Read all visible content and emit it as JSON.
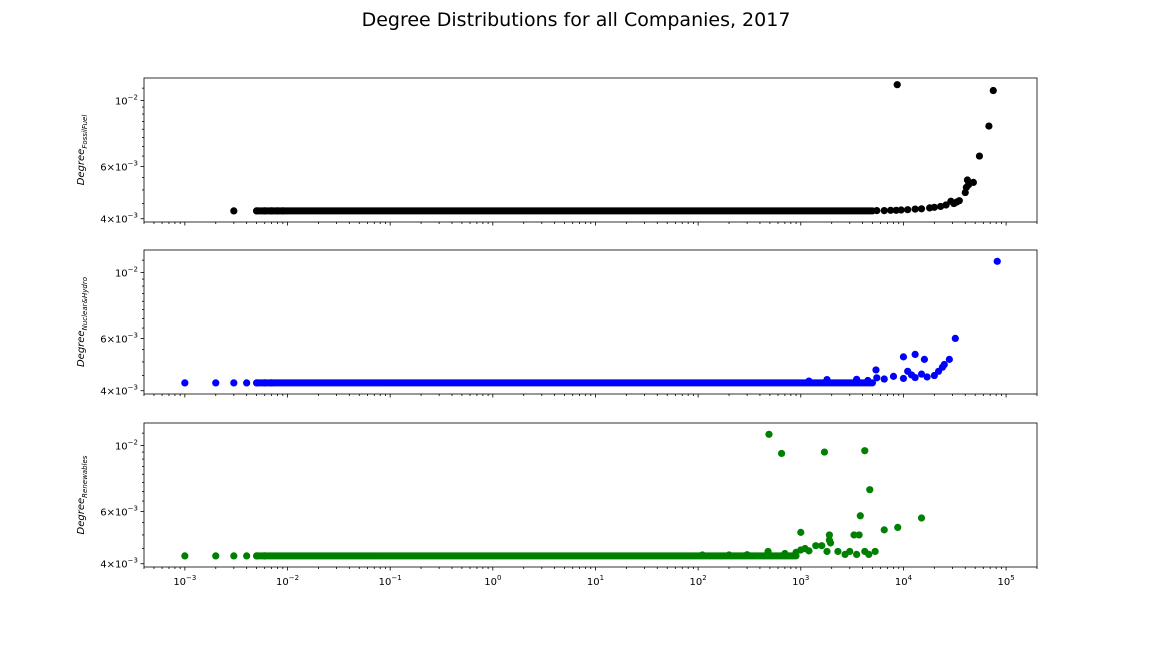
{
  "figure": {
    "title": "Degree Distributions for all Companies, 2017"
  },
  "chart_data": [
    {
      "type": "scatter",
      "color": "#000000",
      "xscale": "log",
      "yscale": "log",
      "xlim": [
        0.0004,
        200000
      ],
      "ylim": [
        0.0039,
        0.0119
      ],
      "ylabel_base": "Degree",
      "ylabel_sub": "FossilFuel",
      "xticks_shown": false,
      "yticks": [
        {
          "value": 0.01,
          "mantissa": "",
          "exp": "−2"
        },
        {
          "value": 0.006,
          "mantissa": "6×",
          "exp": "−3"
        },
        {
          "value": 0.004,
          "mantissa": "4×",
          "exp": "−3"
        }
      ],
      "baseline": {
        "y": 0.00425,
        "x_start": 0.005,
        "x_end": 5000
      },
      "points": [
        {
          "x": 0.003,
          "y": 0.00425
        },
        {
          "x": 0.005,
          "y": 0.00425
        },
        {
          "x": 0.006,
          "y": 0.00425
        },
        {
          "x": 0.007,
          "y": 0.00425
        },
        {
          "x": 0.008,
          "y": 0.00425
        },
        {
          "x": 0.009,
          "y": 0.00425
        },
        {
          "x": 5500,
          "y": 0.00426
        },
        {
          "x": 6500,
          "y": 0.00426
        },
        {
          "x": 7500,
          "y": 0.00427
        },
        {
          "x": 8500,
          "y": 0.00427
        },
        {
          "x": 9500,
          "y": 0.00428
        },
        {
          "x": 11000,
          "y": 0.00429
        },
        {
          "x": 13000,
          "y": 0.00431
        },
        {
          "x": 15000,
          "y": 0.00432
        },
        {
          "x": 18000,
          "y": 0.00435
        },
        {
          "x": 20000,
          "y": 0.00437
        },
        {
          "x": 23000,
          "y": 0.0044
        },
        {
          "x": 26000,
          "y": 0.00445
        },
        {
          "x": 29000,
          "y": 0.00458
        },
        {
          "x": 31000,
          "y": 0.0045
        },
        {
          "x": 33000,
          "y": 0.00455
        },
        {
          "x": 35000,
          "y": 0.0046
        },
        {
          "x": 40000,
          "y": 0.0049
        },
        {
          "x": 41000,
          "y": 0.0051
        },
        {
          "x": 43000,
          "y": 0.0052
        },
        {
          "x": 42000,
          "y": 0.0054
        },
        {
          "x": 48000,
          "y": 0.0053
        },
        {
          "x": 55000,
          "y": 0.0065
        },
        {
          "x": 68000,
          "y": 0.0082
        },
        {
          "x": 75000,
          "y": 0.0108
        },
        {
          "x": 8700,
          "y": 0.0113
        }
      ]
    },
    {
      "type": "scatter",
      "color": "#0000ff",
      "xscale": "log",
      "yscale": "log",
      "xlim": [
        0.0004,
        200000
      ],
      "ylim": [
        0.0039,
        0.0119
      ],
      "ylabel_base": "Degree",
      "ylabel_sub": "Nuclear&Hydro",
      "xticks_shown": false,
      "yticks": [
        {
          "value": 0.01,
          "mantissa": "",
          "exp": "−2"
        },
        {
          "value": 0.006,
          "mantissa": "6×",
          "exp": "−3"
        },
        {
          "value": 0.004,
          "mantissa": "4×",
          "exp": "−3"
        }
      ],
      "baseline": {
        "y": 0.00425,
        "x_start": 0.005,
        "x_end": 5000
      },
      "points": [
        {
          "x": 0.001,
          "y": 0.00425
        },
        {
          "x": 0.002,
          "y": 0.00425
        },
        {
          "x": 0.003,
          "y": 0.00425
        },
        {
          "x": 0.004,
          "y": 0.00425
        },
        {
          "x": 0.005,
          "y": 0.00425
        },
        {
          "x": 0.006,
          "y": 0.00425
        },
        {
          "x": 0.007,
          "y": 0.00425
        },
        {
          "x": 1200,
          "y": 0.00431
        },
        {
          "x": 1800,
          "y": 0.00436
        },
        {
          "x": 3500,
          "y": 0.00437
        },
        {
          "x": 4500,
          "y": 0.00433
        },
        {
          "x": 5500,
          "y": 0.00442
        },
        {
          "x": 6500,
          "y": 0.00438
        },
        {
          "x": 8000,
          "y": 0.00447
        },
        {
          "x": 10000,
          "y": 0.0044
        },
        {
          "x": 11000,
          "y": 0.00465
        },
        {
          "x": 12000,
          "y": 0.00452
        },
        {
          "x": 13000,
          "y": 0.00443
        },
        {
          "x": 15000,
          "y": 0.00455
        },
        {
          "x": 17000,
          "y": 0.00445
        },
        {
          "x": 20000,
          "y": 0.0045
        },
        {
          "x": 22000,
          "y": 0.00465
        },
        {
          "x": 24000,
          "y": 0.0048
        },
        {
          "x": 25000,
          "y": 0.0049
        },
        {
          "x": 28000,
          "y": 0.0051
        },
        {
          "x": 32000,
          "y": 0.006
        },
        {
          "x": 10000,
          "y": 0.0052
        },
        {
          "x": 13000,
          "y": 0.0053
        },
        {
          "x": 16000,
          "y": 0.0051
        },
        {
          "x": 5400,
          "y": 0.0047
        },
        {
          "x": 82000,
          "y": 0.0109
        }
      ]
    },
    {
      "type": "scatter",
      "color": "#008000",
      "xscale": "log",
      "yscale": "log",
      "xlim": [
        0.0004,
        200000
      ],
      "ylim": [
        0.0039,
        0.0119
      ],
      "ylabel_base": "Degree",
      "ylabel_sub": "Renewables",
      "xticks_shown": true,
      "xticks": [
        {
          "value": 0.001,
          "exp": "−3"
        },
        {
          "value": 0.01,
          "exp": "−2"
        },
        {
          "value": 0.1,
          "exp": "−1"
        },
        {
          "value": 1,
          "exp": "0"
        },
        {
          "value": 10,
          "exp": "1"
        },
        {
          "value": 100,
          "exp": "2"
        },
        {
          "value": 1000,
          "exp": "3"
        },
        {
          "value": 10000,
          "exp": "4"
        },
        {
          "value": 100000,
          "exp": "5"
        }
      ],
      "yticks": [
        {
          "value": 0.01,
          "mantissa": "",
          "exp": "−2"
        },
        {
          "value": 0.006,
          "mantissa": "6×",
          "exp": "−3"
        },
        {
          "value": 0.004,
          "mantissa": "4×",
          "exp": "−3"
        }
      ],
      "baseline": {
        "y": 0.00425,
        "x_start": 0.005,
        "x_end": 900
      },
      "points": [
        {
          "x": 0.001,
          "y": 0.00425
        },
        {
          "x": 0.002,
          "y": 0.00425
        },
        {
          "x": 0.003,
          "y": 0.00425
        },
        {
          "x": 0.004,
          "y": 0.00425
        },
        {
          "x": 0.005,
          "y": 0.00425
        },
        {
          "x": 0.006,
          "y": 0.00425
        },
        {
          "x": 110,
          "y": 0.00428
        },
        {
          "x": 200,
          "y": 0.00428
        },
        {
          "x": 300,
          "y": 0.00429
        },
        {
          "x": 480,
          "y": 0.0044
        },
        {
          "x": 700,
          "y": 0.00433
        },
        {
          "x": 900,
          "y": 0.00437
        },
        {
          "x": 1000,
          "y": 0.00445
        },
        {
          "x": 1100,
          "y": 0.0045
        },
        {
          "x": 1200,
          "y": 0.00442
        },
        {
          "x": 1400,
          "y": 0.0046
        },
        {
          "x": 1600,
          "y": 0.0046
        },
        {
          "x": 1800,
          "y": 0.0044
        },
        {
          "x": 1900,
          "y": 0.0048
        },
        {
          "x": 1950,
          "y": 0.0047
        },
        {
          "x": 2300,
          "y": 0.0044
        },
        {
          "x": 2700,
          "y": 0.0043
        },
        {
          "x": 3000,
          "y": 0.0044
        },
        {
          "x": 3500,
          "y": 0.0043
        },
        {
          "x": 4200,
          "y": 0.0044
        },
        {
          "x": 4600,
          "y": 0.0043
        },
        {
          "x": 5300,
          "y": 0.0044
        },
        {
          "x": 1000,
          "y": 0.0051
        },
        {
          "x": 1900,
          "y": 0.005
        },
        {
          "x": 3300,
          "y": 0.005
        },
        {
          "x": 3700,
          "y": 0.005
        },
        {
          "x": 6500,
          "y": 0.0052
        },
        {
          "x": 8800,
          "y": 0.0053
        },
        {
          "x": 3800,
          "y": 0.0058
        },
        {
          "x": 4700,
          "y": 0.0071
        },
        {
          "x": 15000,
          "y": 0.0057
        },
        {
          "x": 650,
          "y": 0.0094
        },
        {
          "x": 1700,
          "y": 0.0095
        },
        {
          "x": 4200,
          "y": 0.0096
        },
        {
          "x": 490,
          "y": 0.0109
        }
      ]
    }
  ]
}
